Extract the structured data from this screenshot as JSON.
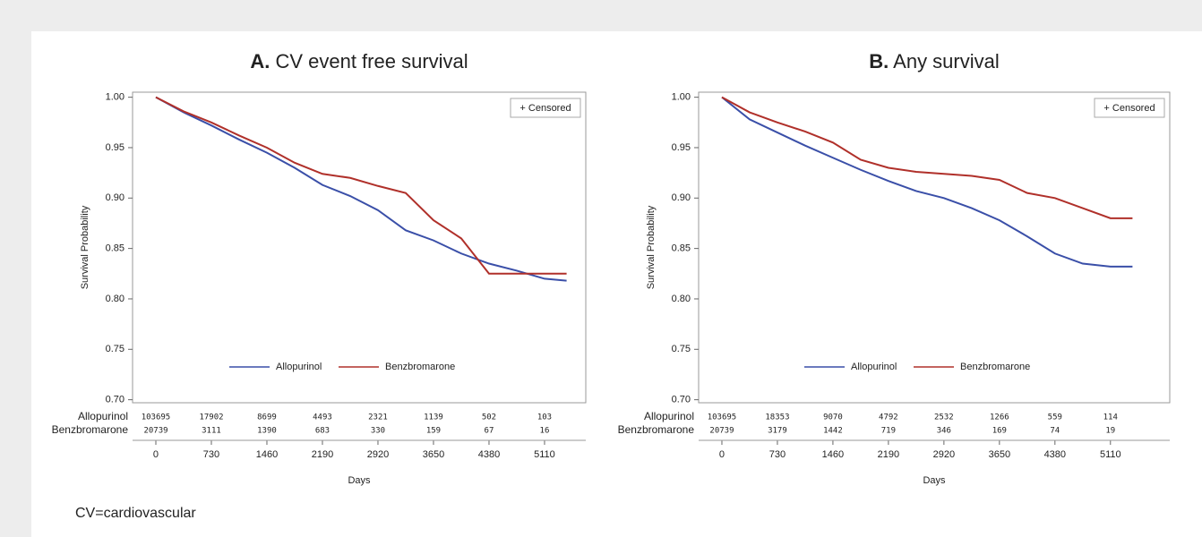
{
  "chart_data": [
    {
      "type": "line",
      "panel_label": "A.",
      "title": "CV event free survival",
      "ylabel": "Survival Probability",
      "xlabel": "Days",
      "censor_legend": "+ Censored",
      "x": [
        0,
        365,
        730,
        1095,
        1460,
        1825,
        2190,
        2555,
        2920,
        3285,
        3650,
        4015,
        4380,
        4745,
        5110,
        5400
      ],
      "series": [
        {
          "name": "Allopurinol",
          "color": "#3a4fa8",
          "values": [
            1.0,
            0.985,
            0.972,
            0.958,
            0.945,
            0.93,
            0.913,
            0.902,
            0.888,
            0.868,
            0.858,
            0.845,
            0.835,
            0.828,
            0.82,
            0.818
          ]
        },
        {
          "name": "Benzbromarone",
          "color": "#b0302a",
          "values": [
            1.0,
            0.986,
            0.975,
            0.962,
            0.95,
            0.935,
            0.924,
            0.92,
            0.912,
            0.905,
            0.878,
            0.86,
            0.825,
            0.825,
            0.825,
            0.825
          ]
        }
      ],
      "xlim": [
        -306,
        5652
      ],
      "xticks": [
        0,
        730,
        1460,
        2190,
        2920,
        3650,
        4380,
        5110
      ],
      "ylim": [
        0.697,
        1.005
      ],
      "yticks": [
        {
          "value": 0.7,
          "label": "0.70"
        },
        0.75,
        {
          "value": 0.8,
          "label": "0.80"
        },
        0.85,
        {
          "value": 0.9,
          "label": "0.90"
        },
        0.95,
        {
          "value": 1,
          "label": "1.00"
        }
      ],
      "risk_table": [
        {
          "name": "Allopurinol",
          "values": [
            103695,
            17902,
            8699,
            4493,
            2321,
            1139,
            502,
            103
          ]
        },
        {
          "name": "Benzbromarone",
          "values": [
            20739,
            3111,
            1390,
            683,
            330,
            159,
            67,
            16
          ]
        }
      ]
    },
    {
      "type": "line",
      "panel_label": "B.",
      "title": "Any survival",
      "ylabel": "Survival Probability",
      "xlabel": "Days",
      "censor_legend": "+ Censored",
      "x": [
        0,
        365,
        730,
        1095,
        1460,
        1825,
        2190,
        2555,
        2920,
        3285,
        3650,
        4015,
        4380,
        4745,
        5110,
        5400
      ],
      "series": [
        {
          "name": "Allopurinol",
          "color": "#3a4fa8",
          "values": [
            1.0,
            0.978,
            0.965,
            0.952,
            0.94,
            0.928,
            0.917,
            0.907,
            0.9,
            0.89,
            0.878,
            0.862,
            0.845,
            0.835,
            0.832,
            0.832
          ]
        },
        {
          "name": "Benzbromarone",
          "color": "#b0302a",
          "values": [
            1.0,
            0.985,
            0.975,
            0.966,
            0.955,
            0.938,
            0.93,
            0.926,
            0.924,
            0.922,
            0.918,
            0.905,
            0.9,
            0.89,
            0.88,
            0.88
          ]
        }
      ],
      "xlim": [
        -306,
        5890
      ],
      "xticks": [
        0,
        730,
        1460,
        2190,
        2920,
        3650,
        4380,
        5110
      ],
      "ylim": [
        0.697,
        1.005
      ],
      "yticks": [
        {
          "value": 0.7,
          "label": "0.70"
        },
        0.75,
        {
          "value": 0.8,
          "label": "0.80"
        },
        0.85,
        {
          "value": 0.9,
          "label": "0.90"
        },
        0.95,
        {
          "value": 1,
          "label": "1.00"
        }
      ],
      "risk_table": [
        {
          "name": "Allopurinol",
          "values": [
            103695,
            18353,
            9070,
            4792,
            2532,
            1266,
            559,
            114
          ]
        },
        {
          "name": "Benzbromarone",
          "values": [
            20739,
            3179,
            1442,
            719,
            346,
            169,
            74,
            19
          ]
        }
      ]
    }
  ],
  "footnote": "CV=cardiovascular"
}
